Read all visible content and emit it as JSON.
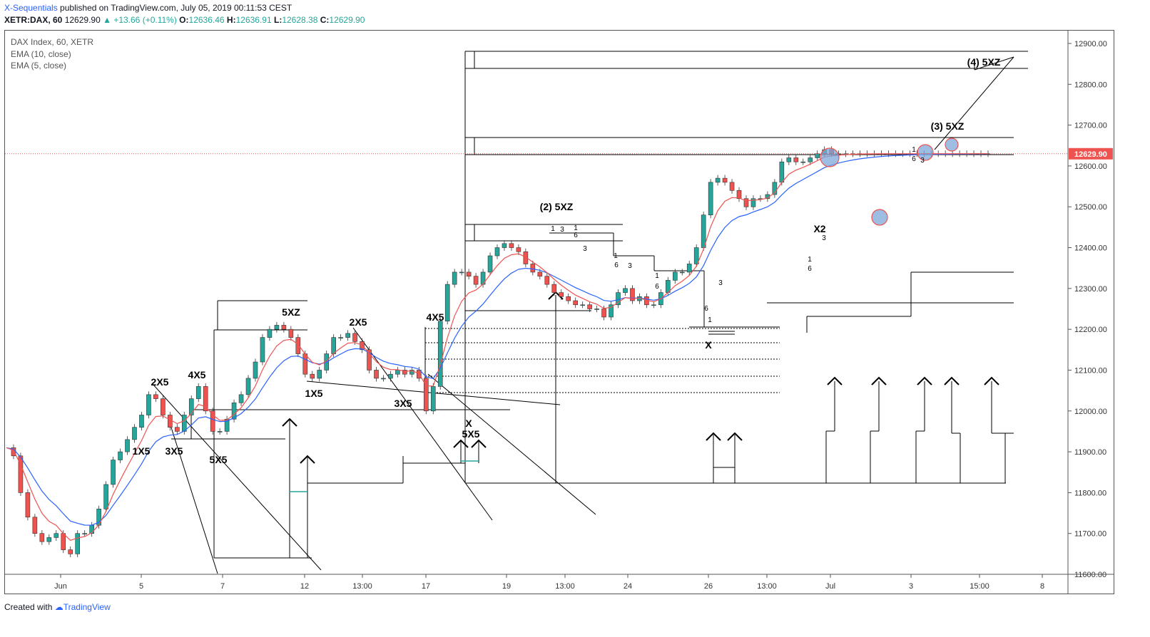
{
  "header": {
    "brand": "X-Sequentials",
    "published": " published on TradingView.com, July 05, 2019 00:11:53 CEST"
  },
  "symbol_line": {
    "symbol": "XETR:DAX, 60",
    "last": "12629.90",
    "change": "▲ +13.66 (+0.11%)",
    "o_label": "O:",
    "o": "12636.46",
    "h_label": "H:",
    "h": "12636.91",
    "l_label": "L:",
    "l": "12628.38",
    "c_label": "C:",
    "c": "12629.90"
  },
  "legend": {
    "series": "DAX Index, 60, XETR",
    "ema10": "EMA (10, close)",
    "ema5": "EMA (5, close)"
  },
  "footer": {
    "created_with": "Created with",
    "tradingview": "TradingView"
  },
  "chart_data": {
    "type": "line",
    "symbol": "DAX Index",
    "interval": "60",
    "exchange": "XETR",
    "ylim": [
      11600,
      12900
    ],
    "y_ticks": [
      11600,
      11700,
      11800,
      11900,
      12000,
      12100,
      12200,
      12300,
      12400,
      12500,
      12600,
      12700,
      12800,
      12900
    ],
    "x_tick_labels": [
      "Jun",
      "5",
      "7",
      "12",
      "13:00",
      "17",
      "19",
      "13:00",
      "24",
      "26",
      "13:00",
      "Jul",
      "3",
      "15:00",
      "8"
    ],
    "last_price_label": "12629.90",
    "last_price": 12629.9,
    "colors": {
      "up": "#26a69a",
      "down": "#ef5350",
      "ema10": "#2962ff",
      "ema5": "#ef5350",
      "last_price": "#ef5350"
    },
    "series": [
      {
        "name": "DAX Index, 60, XETR",
        "x": [
          0,
          10,
          20,
          30,
          40,
          50,
          60,
          70,
          80,
          90,
          100,
          110,
          120,
          130,
          140,
          150,
          160,
          170,
          180,
          190,
          200,
          210,
          220,
          230,
          240,
          250,
          260,
          270,
          280,
          290,
          300,
          310,
          320,
          330,
          340,
          350,
          360,
          370,
          380,
          390,
          400,
          410,
          420,
          430,
          440,
          450,
          460,
          470,
          480,
          490,
          500,
          510,
          520,
          530,
          540,
          550,
          560,
          570,
          580,
          590,
          600,
          610,
          620,
          630,
          640,
          650,
          660,
          670,
          680,
          690,
          700,
          710,
          720,
          730,
          740,
          750,
          760,
          770,
          780,
          790,
          800,
          810,
          820,
          830,
          840,
          850,
          860,
          870,
          880,
          890,
          900,
          910,
          920,
          930,
          940,
          950,
          960,
          970,
          980,
          990,
          1000,
          1010,
          1020,
          1030,
          1040,
          1050,
          1060,
          1070,
          1080,
          1090,
          1100,
          1110,
          1120,
          1130,
          1140,
          1150,
          1160,
          1170,
          1180,
          1190,
          1200,
          1210,
          1220,
          1230,
          1240,
          1250,
          1260,
          1270,
          1280,
          1290,
          1300,
          1310,
          1320,
          1330,
          1340,
          1350,
          1360,
          1370,
          1380
        ],
        "values": [
          11910,
          11890,
          11800,
          11740,
          11700,
          11680,
          11690,
          11700,
          11660,
          11650,
          11700,
          11700,
          11720,
          11760,
          11820,
          11880,
          11900,
          11930,
          11960,
          11990,
          12040,
          12030,
          11990,
          11960,
          11950,
          11990,
          12030,
          12060,
          12000,
          11950,
          11950,
          11980,
          12020,
          12040,
          12080,
          12120,
          12180,
          12200,
          12210,
          12200,
          12180,
          12140,
          12090,
          12080,
          12100,
          12140,
          12180,
          12180,
          12190,
          12170,
          12150,
          12100,
          12080,
          12080,
          12090,
          12100,
          12090,
          12100,
          12080,
          12000,
          12060,
          12220,
          12310,
          12340,
          12340,
          12330,
          12310,
          12340,
          12380,
          12400,
          12410,
          12400,
          12390,
          12360,
          12340,
          12330,
          12310,
          12290,
          12280,
          12270,
          12260,
          12260,
          12250,
          12250,
          12230,
          12260,
          12290,
          12300,
          12270,
          12280,
          12260,
          12260,
          12290,
          12320,
          12340,
          12340,
          12360,
          12400,
          12480,
          12560,
          12570,
          12560,
          12540,
          12520,
          12500,
          12520,
          12520,
          12530,
          12560,
          12610,
          12620,
          12610,
          12610,
          12620,
          12630,
          12640,
          12630,
          12630,
          12630,
          12630,
          12630,
          12630,
          12630,
          12630,
          12630,
          12630,
          12630,
          12630,
          12630,
          12630,
          12630,
          12630,
          12630,
          12630,
          12630,
          12630,
          12630,
          12630,
          12630
        ]
      }
    ],
    "annotations": [
      "(4) 5XZ",
      "(3) 5XZ",
      "(2) 5XZ",
      "5XZ",
      "2X5",
      "4X5",
      "2X5",
      "4X5",
      "1X5",
      "3X5",
      "5X5",
      "1X5",
      "3X5",
      "X",
      "5X5",
      "X",
      "X2"
    ],
    "counts": [
      "1",
      "3",
      "1",
      "6",
      "3",
      "1",
      "6",
      "3",
      "1",
      "6",
      "3",
      "6",
      "1",
      "3",
      "1",
      "6",
      "1",
      "6",
      "3"
    ]
  }
}
